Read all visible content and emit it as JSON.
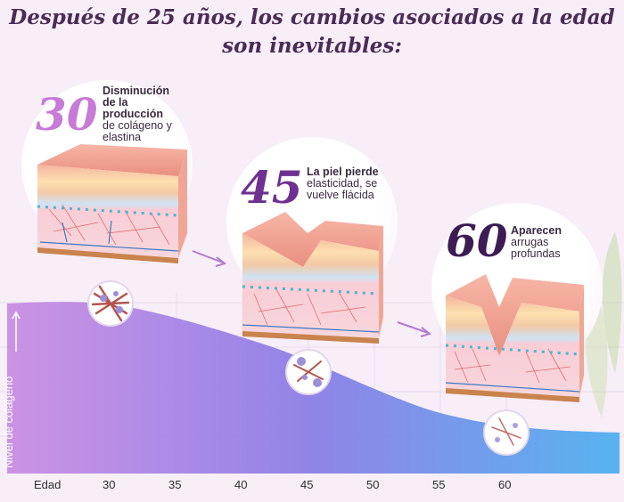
{
  "title": {
    "line1": "Después de 25 años, los cambios asociados a la edad",
    "line2": "son inevitables:"
  },
  "stages": [
    {
      "age": "30",
      "bold_lines": [
        "Disminución",
        "de la",
        "producción"
      ],
      "lines": [
        "de colágeno y",
        "elastina"
      ]
    },
    {
      "age": "45",
      "bold_lines": [
        "La piel pierde"
      ],
      "lines": [
        "elasticidad, se",
        "vuelve flácida"
      ]
    },
    {
      "age": "60",
      "bold_lines": [
        "Aparecen"
      ],
      "lines": [
        "arrugas",
        "profundas"
      ]
    }
  ],
  "y_axis_label": "Nivel de colágeno",
  "x_axis": {
    "label": "Edad",
    "ticks": [
      "30",
      "35",
      "40",
      "45",
      "50",
      "55",
      "60"
    ]
  },
  "colors": {
    "title": "#4a2c57",
    "age_30": "#c77ad6",
    "age_45": "#6e3191",
    "age_60": "#3d1b53",
    "curve_start": "#c98ee3",
    "curve_end": "#4fb0f0"
  }
}
